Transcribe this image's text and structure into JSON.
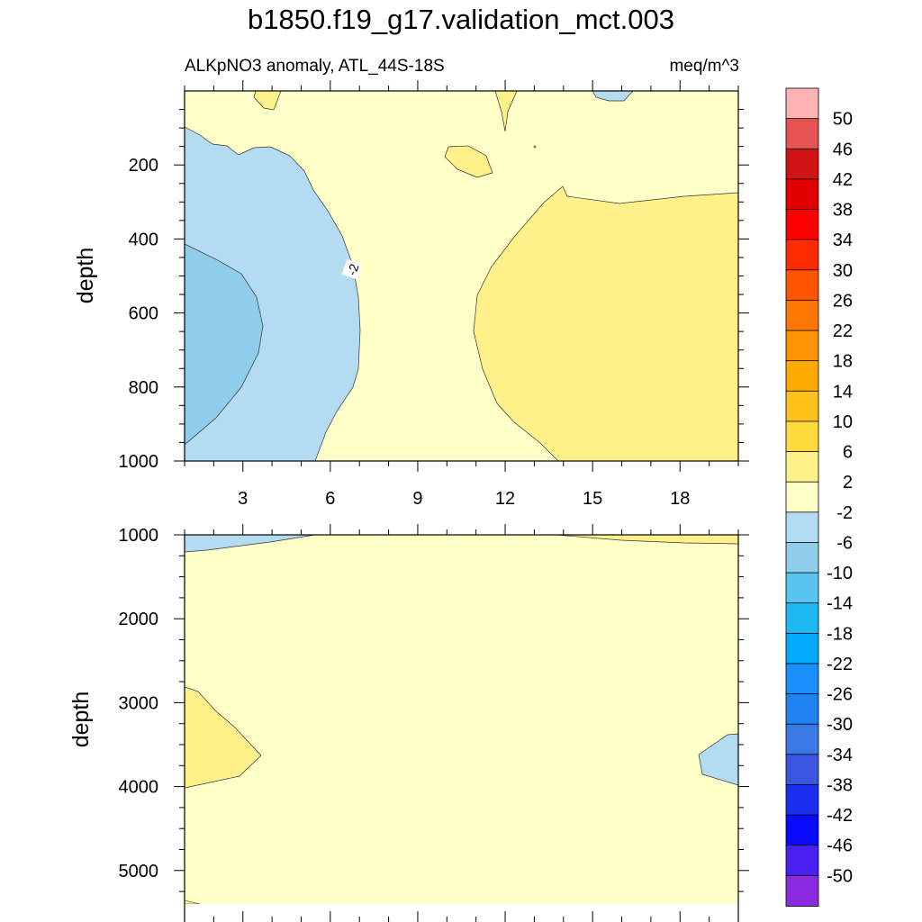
{
  "title": "b1850.f19_g17.validation_mct.003",
  "subtitle_left": "ALKpNO3 anomaly, ATL_44S-18S",
  "subtitle_right": "meq/m^3",
  "chart_data": [
    {
      "type": "heatmap",
      "panel": "upper",
      "ylabel": "depth",
      "xlim": [
        1,
        20
      ],
      "ylim": [
        1000,
        0
      ],
      "xticks": [
        3,
        6,
        9,
        12,
        15,
        18
      ],
      "yticks": [
        200,
        400,
        600,
        800,
        1000
      ],
      "contour_labels": [
        "-2"
      ],
      "regions": [
        {
          "level": "-6 to -2",
          "description": "western slope, 100-1000 m"
        },
        {
          "level": "-10 to -6",
          "description": "western core near 600 m"
        },
        {
          "level": "-2 to 2",
          "description": "central column"
        },
        {
          "level": "2 to 6",
          "description": "eastern side below 280 m"
        }
      ]
    },
    {
      "type": "heatmap",
      "panel": "lower",
      "ylabel": "depth",
      "xlim": [
        1,
        20
      ],
      "ylim": [
        5400,
        1000
      ],
      "yticks": [
        1000,
        2000,
        3000,
        4000,
        5000
      ],
      "regions": [
        {
          "level": "-2 to 2",
          "description": "background"
        },
        {
          "level": "2 to 6",
          "description": "western bulge near 3500 m"
        },
        {
          "level": "-6 to -2",
          "description": "eastern edge near 3650 m"
        }
      ]
    }
  ],
  "colorbar": {
    "labels": [
      "50",
      "46",
      "42",
      "38",
      "34",
      "30",
      "26",
      "22",
      "18",
      "14",
      "10",
      "6",
      "2",
      "-2",
      "-6",
      "-10",
      "-14",
      "-18",
      "-22",
      "-26",
      "-30",
      "-34",
      "-38",
      "-42",
      "-46",
      "-50"
    ],
    "colors": [
      "#FFB3B3",
      "#E55353",
      "#D01313",
      "#E00000",
      "#FF0000",
      "#FF2A00",
      "#FF5500",
      "#FF7700",
      "#FF9200",
      "#FFAA00",
      "#FFC21A",
      "#FFDC3C",
      "#FFF18A",
      "#FFFFC8",
      "#B3DCF3",
      "#8FCDEB",
      "#5AC4F0",
      "#1EB9F5",
      "#00AAFF",
      "#1A90FF",
      "#1E82F0",
      "#3A78E6",
      "#3A55E0",
      "#1A2EF0",
      "#0A0AFF",
      "#4A20F0",
      "#8A2BE2"
    ]
  }
}
